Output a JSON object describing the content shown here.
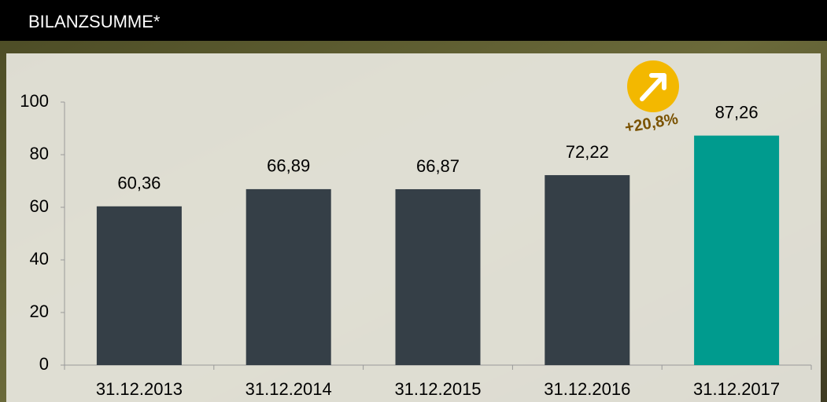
{
  "chart_data": {
    "type": "bar",
    "title": "BILANZSUMME*",
    "categories": [
      "31.12.2013",
      "31.12.2014",
      "31.12.2015",
      "31.12.2016",
      "31.12.2017"
    ],
    "values": [
      60.36,
      66.89,
      66.87,
      72.22,
      87.26
    ],
    "value_labels": [
      "60,36",
      "66,89",
      "66,87",
      "72,22",
      "87,26"
    ],
    "colors": [
      "#353f47",
      "#353f47",
      "#353f47",
      "#353f47",
      "#009b8e"
    ],
    "ylim": [
      0,
      100
    ],
    "yticks": [
      0,
      20,
      40,
      60,
      80,
      100
    ],
    "grid": false,
    "annotation": "+20,8%"
  }
}
